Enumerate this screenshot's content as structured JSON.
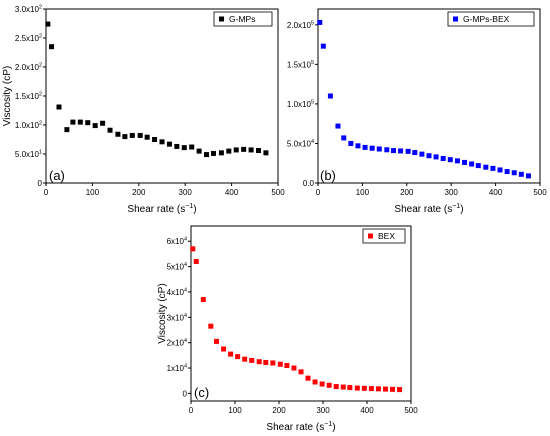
{
  "chart_data": [
    {
      "type": "scatter",
      "panel_label": "(a)",
      "xlabel": "Shear rate (s",
      "xlabel_sup": "−1",
      "xlabel_close": ")",
      "ylabel": "Viscosity (cP)",
      "xlim": [
        0,
        500
      ],
      "ylim": [
        0,
        300
      ],
      "x_ticks": [
        0,
        100,
        200,
        300,
        400,
        500
      ],
      "x_tick_labels": [
        "0",
        "100",
        "200",
        "300",
        "400",
        "500"
      ],
      "y_ticks": [
        0,
        50,
        100,
        150,
        200,
        250,
        300
      ],
      "y_tick_labels": [
        {
          "value": 0,
          "base": "0",
          "exp": ""
        },
        {
          "value": 50,
          "base": "5.0x10",
          "exp": "1"
        },
        {
          "value": 100,
          "base": "1.0x10",
          "exp": "2"
        },
        {
          "value": 150,
          "base": "1.5x10",
          "exp": "2"
        },
        {
          "value": 200,
          "base": "2.0x10",
          "exp": "2"
        },
        {
          "value": 250,
          "base": "2.5x10",
          "exp": "2"
        },
        {
          "value": 300,
          "base": "3.0x10",
          "exp": "2"
        }
      ],
      "legend_position": "top-right",
      "series": [
        {
          "name": "G-MPs",
          "color": "#000000",
          "points": [
            [
              4,
              274
            ],
            [
              12,
              235
            ],
            [
              28,
              131
            ],
            [
              45,
              92
            ],
            [
              58,
              105
            ],
            [
              74,
              105
            ],
            [
              90,
              104
            ],
            [
              106,
              99
            ],
            [
              122,
              103
            ],
            [
              138,
              91
            ],
            [
              155,
              84
            ],
            [
              170,
              80
            ],
            [
              186,
              82
            ],
            [
              203,
              82
            ],
            [
              218,
              79
            ],
            [
              234,
              75
            ],
            [
              250,
              71
            ],
            [
              266,
              67
            ],
            [
              282,
              63
            ],
            [
              298,
              61
            ],
            [
              314,
              62
            ],
            [
              330,
              55
            ],
            [
              346,
              49
            ],
            [
              361,
              51
            ],
            [
              378,
              52
            ],
            [
              394,
              55
            ],
            [
              410,
              57
            ],
            [
              426,
              58
            ],
            [
              442,
              57
            ],
            [
              458,
              56
            ],
            [
              474,
              52
            ]
          ]
        }
      ]
    },
    {
      "type": "scatter",
      "panel_label": "(b)",
      "xlabel": "Shear rate (s",
      "xlabel_sup": "−1",
      "xlabel_close": ")",
      "ylabel": "",
      "xlim": [
        0,
        500
      ],
      "ylim": [
        0,
        220000
      ],
      "x_ticks": [
        0,
        100,
        200,
        300,
        400,
        500
      ],
      "x_tick_labels": [
        "0",
        "100",
        "200",
        "300",
        "400",
        "500"
      ],
      "y_ticks": [
        0,
        50000,
        100000,
        150000,
        200000
      ],
      "y_tick_labels": [
        {
          "value": 0,
          "base": "0.0",
          "exp": ""
        },
        {
          "value": 50000,
          "base": "5.0x10",
          "exp": "4"
        },
        {
          "value": 100000,
          "base": "1.0x10",
          "exp": "5"
        },
        {
          "value": 150000,
          "base": "1.5x10",
          "exp": "5"
        },
        {
          "value": 200000,
          "base": "2.0x10",
          "exp": "5"
        }
      ],
      "legend_position": "top-right",
      "series": [
        {
          "name": "G-MPs-BEX",
          "color": "#0000ff",
          "points": [
            [
              4,
              203000
            ],
            [
              12,
              173000
            ],
            [
              28,
              110000
            ],
            [
              45,
              72000
            ],
            [
              58,
              57000
            ],
            [
              74,
              50000
            ],
            [
              90,
              47000
            ],
            [
              106,
              45000
            ],
            [
              122,
              44000
            ],
            [
              138,
              43000
            ],
            [
              155,
              42000
            ],
            [
              170,
              41000
            ],
            [
              186,
              40500
            ],
            [
              203,
              40000
            ],
            [
              218,
              38500
            ],
            [
              234,
              36500
            ],
            [
              250,
              34500
            ],
            [
              266,
              33000
            ],
            [
              282,
              31000
            ],
            [
              298,
              29500
            ],
            [
              314,
              28000
            ],
            [
              330,
              26000
            ],
            [
              346,
              24000
            ],
            [
              361,
              22000
            ],
            [
              378,
              20000
            ],
            [
              394,
              18500
            ],
            [
              410,
              16500
            ],
            [
              426,
              14500
            ],
            [
              442,
              13000
            ],
            [
              458,
              11000
            ],
            [
              474,
              9000
            ]
          ]
        }
      ]
    },
    {
      "type": "scatter",
      "panel_label": "(c)",
      "xlabel": "Shear rate (s",
      "xlabel_sup": "−1",
      "xlabel_close": ")",
      "ylabel": "Viscosity (cP)",
      "xlim": [
        0,
        500
      ],
      "ylim": [
        -3000,
        66000
      ],
      "x_ticks": [
        0,
        100,
        200,
        300,
        400,
        500
      ],
      "x_tick_labels": [
        "0",
        "100",
        "200",
        "300",
        "400",
        "500"
      ],
      "y_ticks": [
        0,
        10000,
        20000,
        30000,
        40000,
        50000,
        60000
      ],
      "y_tick_labels": [
        {
          "value": 0,
          "base": "0",
          "exp": ""
        },
        {
          "value": 10000,
          "base": "1x10",
          "exp": "4"
        },
        {
          "value": 20000,
          "base": "2x10",
          "exp": "4"
        },
        {
          "value": 30000,
          "base": "3x10",
          "exp": "4"
        },
        {
          "value": 40000,
          "base": "4x10",
          "exp": "4"
        },
        {
          "value": 50000,
          "base": "5x10",
          "exp": "4"
        },
        {
          "value": 60000,
          "base": "6x10",
          "exp": "4"
        }
      ],
      "legend_position": "top-right",
      "series": [
        {
          "name": "BEX",
          "color": "#ff0000",
          "points": [
            [
              4,
              57000
            ],
            [
              12,
              52000
            ],
            [
              28,
              37000
            ],
            [
              45,
              26500
            ],
            [
              58,
              20500
            ],
            [
              74,
              17500
            ],
            [
              90,
              15500
            ],
            [
              106,
              14500
            ],
            [
              122,
              13500
            ],
            [
              138,
              13000
            ],
            [
              155,
              12500
            ],
            [
              170,
              12200
            ],
            [
              186,
              12000
            ],
            [
              203,
              11500
            ],
            [
              218,
              11000
            ],
            [
              234,
              10000
            ],
            [
              250,
              8500
            ],
            [
              266,
              6000
            ],
            [
              282,
              4500
            ],
            [
              298,
              3700
            ],
            [
              314,
              3200
            ],
            [
              330,
              2700
            ],
            [
              346,
              2500
            ],
            [
              361,
              2300
            ],
            [
              378,
              2100
            ],
            [
              394,
              2000
            ],
            [
              410,
              1900
            ],
            [
              426,
              1800
            ],
            [
              442,
              1700
            ],
            [
              458,
              1600
            ],
            [
              474,
              1500
            ]
          ]
        }
      ]
    }
  ]
}
